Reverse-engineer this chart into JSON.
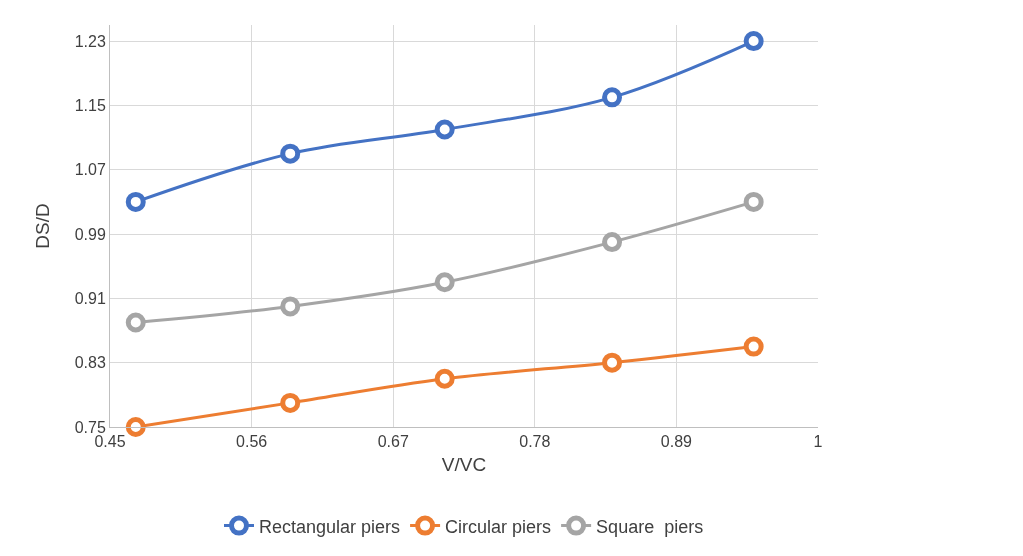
{
  "chart_data": {
    "type": "line",
    "xlabel": "V/VC",
    "ylabel": "DS/D",
    "x": [
      0.47,
      0.59,
      0.71,
      0.84,
      0.95
    ],
    "series": [
      {
        "name": "Rectangular piers",
        "color": "#4472c4",
        "values": [
          1.03,
          1.09,
          1.12,
          1.16,
          1.23
        ]
      },
      {
        "name": "Circular piers",
        "color": "#ed7d31",
        "values": [
          0.75,
          0.78,
          0.81,
          0.83,
          0.85
        ]
      },
      {
        "name": "Square  piers",
        "color": "#a5a5a5",
        "values": [
          0.88,
          0.9,
          0.93,
          0.98,
          1.03
        ]
      }
    ],
    "xlim": [
      0.45,
      1
    ],
    "xticks": [
      0.45,
      0.56,
      0.67,
      0.78,
      0.89,
      1
    ],
    "ylim": [
      0.75,
      1.25
    ],
    "yticks": [
      0.75,
      0.83,
      0.91,
      0.99,
      1.07,
      1.15,
      1.23
    ],
    "grid": true,
    "legend": "bottom",
    "marker": "circle",
    "line_style": "solid"
  }
}
